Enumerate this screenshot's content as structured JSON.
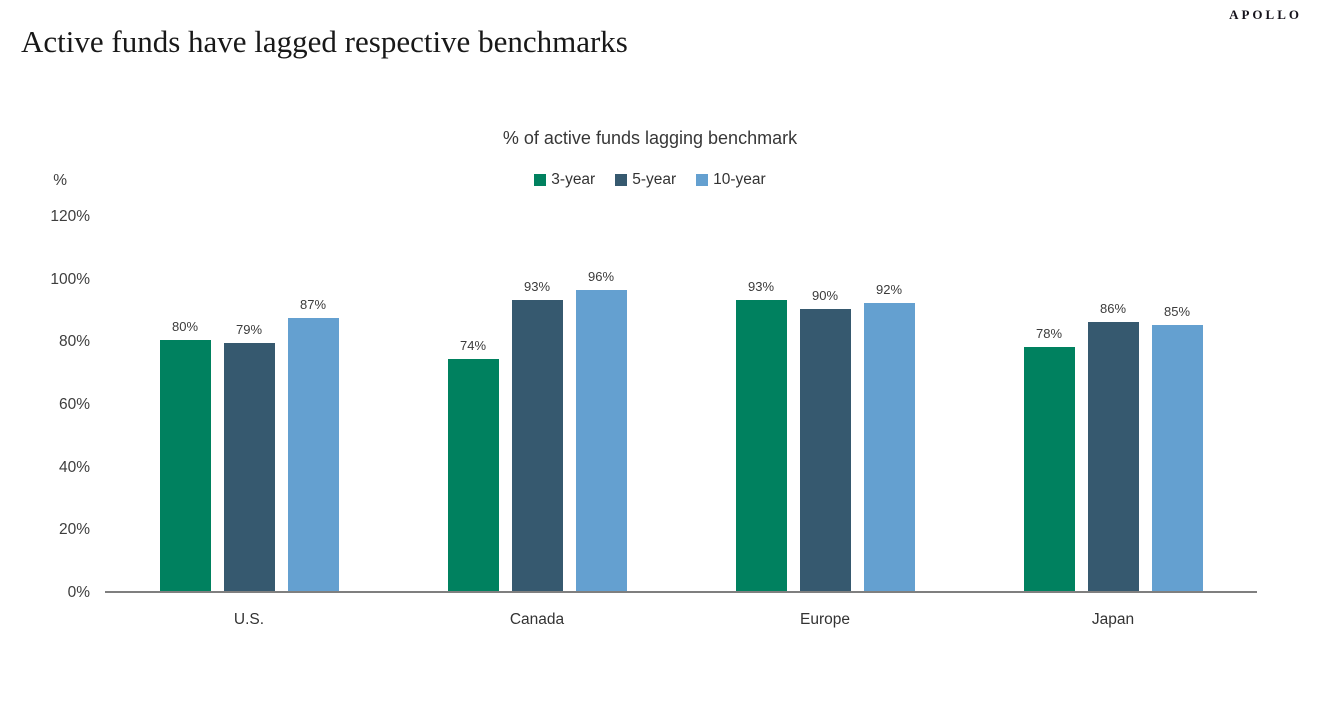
{
  "brand": {
    "logo_text": "APOLLO"
  },
  "header": {
    "title": "Active funds have lagged respective benchmarks"
  },
  "chart_data": {
    "type": "bar",
    "title": "% of active funds lagging benchmark",
    "y_axis_unit": "%",
    "categories": [
      "U.S.",
      "Canada",
      "Europe",
      "Japan"
    ],
    "series": [
      {
        "name": "3-year",
        "color": "#00815f",
        "values": [
          80,
          74,
          93,
          78
        ]
      },
      {
        "name": "5-year",
        "color": "#36596f",
        "values": [
          79,
          93,
          90,
          86
        ]
      },
      {
        "name": "10-year",
        "color": "#64a0d0",
        "values": [
          87,
          96,
          92,
          85
        ]
      }
    ],
    "value_suffix": "%",
    "ylim": [
      0,
      120
    ],
    "y_ticks": [
      {
        "value": 0,
        "label": "0%"
      },
      {
        "value": 20,
        "label": "20%"
      },
      {
        "value": 40,
        "label": "40%"
      },
      {
        "value": 60,
        "label": "60%"
      },
      {
        "value": 80,
        "label": "80%"
      },
      {
        "value": 100,
        "label": "100%"
      },
      {
        "value": 120,
        "label": "120%"
      }
    ],
    "grid": false,
    "legend_position": "top",
    "axis_line_color": "#7f7f7f"
  }
}
